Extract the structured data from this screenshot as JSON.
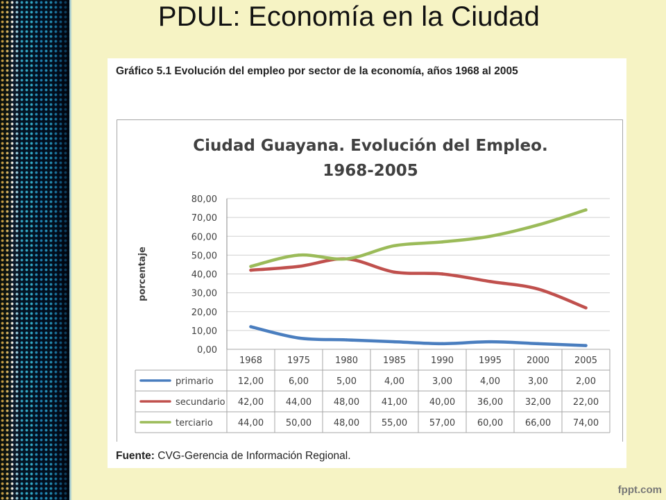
{
  "slide": {
    "title": "PDUL: Economía en la Ciudad",
    "caption": "Gráfico 5.1 Evolución del empleo por sector de la economía, años 1968 al 2005",
    "source_label": "Fuente:",
    "source_text": " CVG-Gerencia de Información Regional.",
    "watermark": "fppt.com"
  },
  "chart_data": {
    "type": "line",
    "title_lines": [
      "Ciudad Guayana. Evolución del Empleo.",
      "1968-2005"
    ],
    "xlabel": "",
    "ylabel": "porcentaje",
    "ylim": [
      0,
      80
    ],
    "y_ticks": [
      "0,00",
      "10,00",
      "20,00",
      "30,00",
      "40,00",
      "50,00",
      "60,00",
      "70,00",
      "80,00"
    ],
    "grid": true,
    "legend": "data-table-below",
    "categories": [
      "1968",
      "1975",
      "1980",
      "1985",
      "1990",
      "1995",
      "2000",
      "2005"
    ],
    "series": [
      {
        "name": "primario",
        "color": "#4a7ebf",
        "values": [
          12,
          6,
          5,
          4,
          3,
          4,
          3,
          2
        ],
        "labels": [
          "12,00",
          "6,00",
          "5,00",
          "4,00",
          "3,00",
          "4,00",
          "3,00",
          "2,00"
        ]
      },
      {
        "name": "secundario",
        "color": "#c0504d",
        "values": [
          42,
          44,
          48,
          41,
          40,
          36,
          32,
          22
        ],
        "labels": [
          "42,00",
          "44,00",
          "48,00",
          "41,00",
          "40,00",
          "36,00",
          "32,00",
          "22,00"
        ]
      },
      {
        "name": "terciario",
        "color": "#9bbb59",
        "values": [
          44,
          50,
          48,
          55,
          57,
          60,
          66,
          74
        ],
        "labels": [
          "44,00",
          "50,00",
          "48,00",
          "55,00",
          "57,00",
          "60,00",
          "66,00",
          "74,00"
        ]
      }
    ]
  }
}
